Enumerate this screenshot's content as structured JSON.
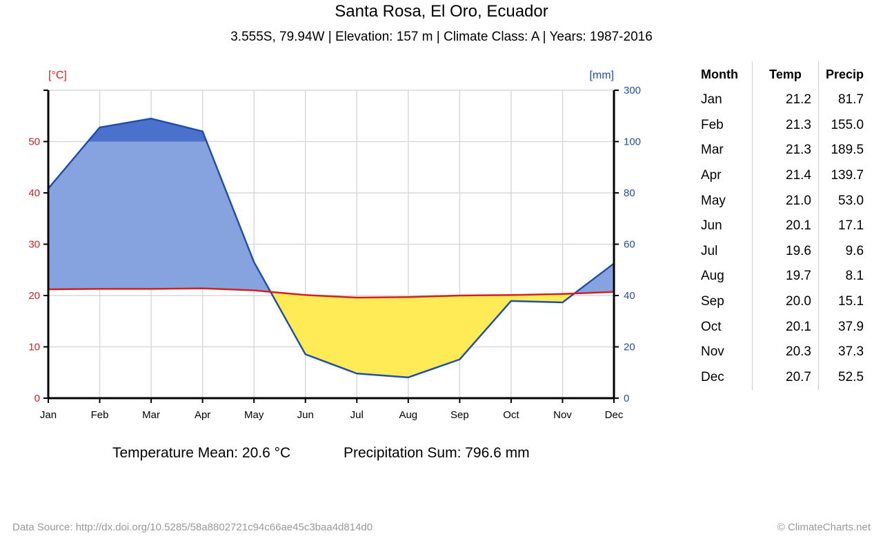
{
  "header": {
    "title": "Santa Rosa, El Oro, Ecuador",
    "subtitle": "3.555S, 79.94W | Elevation: 157 m | Climate Class: A | Years: 1987-2016"
  },
  "stats": {
    "temperature_mean": "Temperature Mean: 20.6 °C",
    "precipitation_sum": "Precipitation Sum: 796.6 mm"
  },
  "footer": {
    "source": "Data Source: http://dx.doi.org/10.5285/58a8802721c94c66ae45c3baa4d814d0",
    "credit": "© ClimateCharts.net"
  },
  "table": {
    "headers": {
      "month": "Month",
      "temp": "Temp",
      "precip": "Precip"
    },
    "rows": [
      {
        "month": "Jan",
        "temp": "21.2",
        "precip": "81.7"
      },
      {
        "month": "Feb",
        "temp": "21.3",
        "precip": "155.0"
      },
      {
        "month": "Mar",
        "temp": "21.3",
        "precip": "189.5"
      },
      {
        "month": "Apr",
        "temp": "21.4",
        "precip": "139.7"
      },
      {
        "month": "May",
        "temp": "21.0",
        "precip": "53.0"
      },
      {
        "month": "Jun",
        "temp": "20.1",
        "precip": "17.1"
      },
      {
        "month": "Jul",
        "temp": "19.6",
        "precip": "9.6"
      },
      {
        "month": "Aug",
        "temp": "19.7",
        "precip": "8.1"
      },
      {
        "month": "Sep",
        "temp": "20.0",
        "precip": "15.1"
      },
      {
        "month": "Oct",
        "temp": "20.1",
        "precip": "37.9"
      },
      {
        "month": "Nov",
        "temp": "20.3",
        "precip": "37.3"
      },
      {
        "month": "Dec",
        "temp": "20.7",
        "precip": "52.5"
      }
    ]
  },
  "colors": {
    "temperature": "#d02020",
    "precipitation": "#1f4fa8",
    "humid_fill": "#86a3df",
    "perhumid_fill": "#4a72cc",
    "arid_fill": "#ffeb55",
    "grid": "#d8d8d8"
  },
  "chart_data": {
    "type": "line",
    "x": [
      "Jan",
      "Feb",
      "Mar",
      "Apr",
      "May",
      "Jun",
      "Jul",
      "Aug",
      "Sep",
      "Oct",
      "Nov",
      "Dec"
    ],
    "series": [
      {
        "name": "Temp",
        "unit": "°C",
        "axis": "left",
        "values": [
          21.2,
          21.3,
          21.3,
          21.4,
          21.0,
          20.1,
          19.6,
          19.7,
          20.0,
          20.1,
          20.3,
          20.7
        ]
      },
      {
        "name": "Precip",
        "unit": "mm",
        "axis": "right",
        "values": [
          81.7,
          155.0,
          189.5,
          139.7,
          53.0,
          17.1,
          9.6,
          8.1,
          15.1,
          37.9,
          37.3,
          52.5
        ]
      }
    ],
    "y_left": {
      "label": "[°C]",
      "range": [
        0,
        60
      ],
      "ticks": [
        0,
        10,
        20,
        30,
        40,
        50
      ]
    },
    "y_right": {
      "label": "[mm]",
      "range": [
        0,
        300
      ],
      "ticks": [
        0,
        20,
        40,
        60,
        80,
        100,
        300
      ],
      "scale": "linear 0-100 (2 mm per °C), compressed 100-300"
    },
    "grid": true
  }
}
